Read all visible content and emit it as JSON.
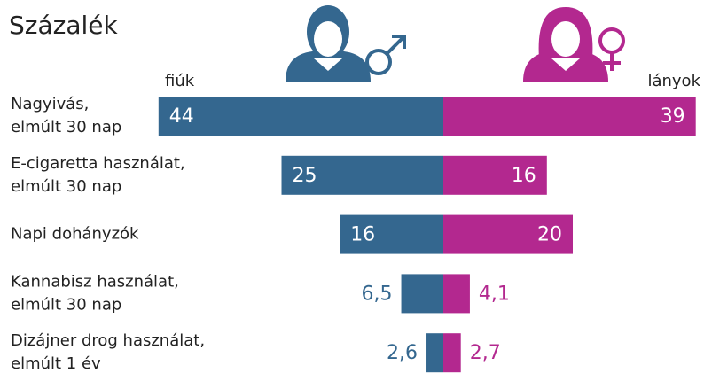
{
  "chart_data": {
    "type": "butterfly",
    "title": "Százalék",
    "categories": [
      [
        "Nagyivás,",
        "elmúlt 30 nap"
      ],
      [
        "E-cigaretta használat,",
        "elmúlt 30 nap"
      ],
      [
        "Napi dohányzók"
      ],
      [
        "Kannabisz használat,",
        "elmúlt 30 nap"
      ],
      [
        "Dizájner drog használat,",
        "elmúlt 1 év"
      ]
    ],
    "series": [
      {
        "name": "fiúk",
        "color": "#34678f",
        "values": [
          44,
          25,
          16,
          6.5,
          2.6
        ],
        "value_labels": [
          "44",
          "25",
          "16",
          "6,5",
          "2,6"
        ]
      },
      {
        "name": "lányok",
        "color": "#b3288f",
        "values": [
          39,
          16,
          20,
          4.1,
          2.7
        ],
        "value_labels": [
          "39",
          "16",
          "20",
          "4,1",
          "2,7"
        ]
      }
    ]
  }
}
